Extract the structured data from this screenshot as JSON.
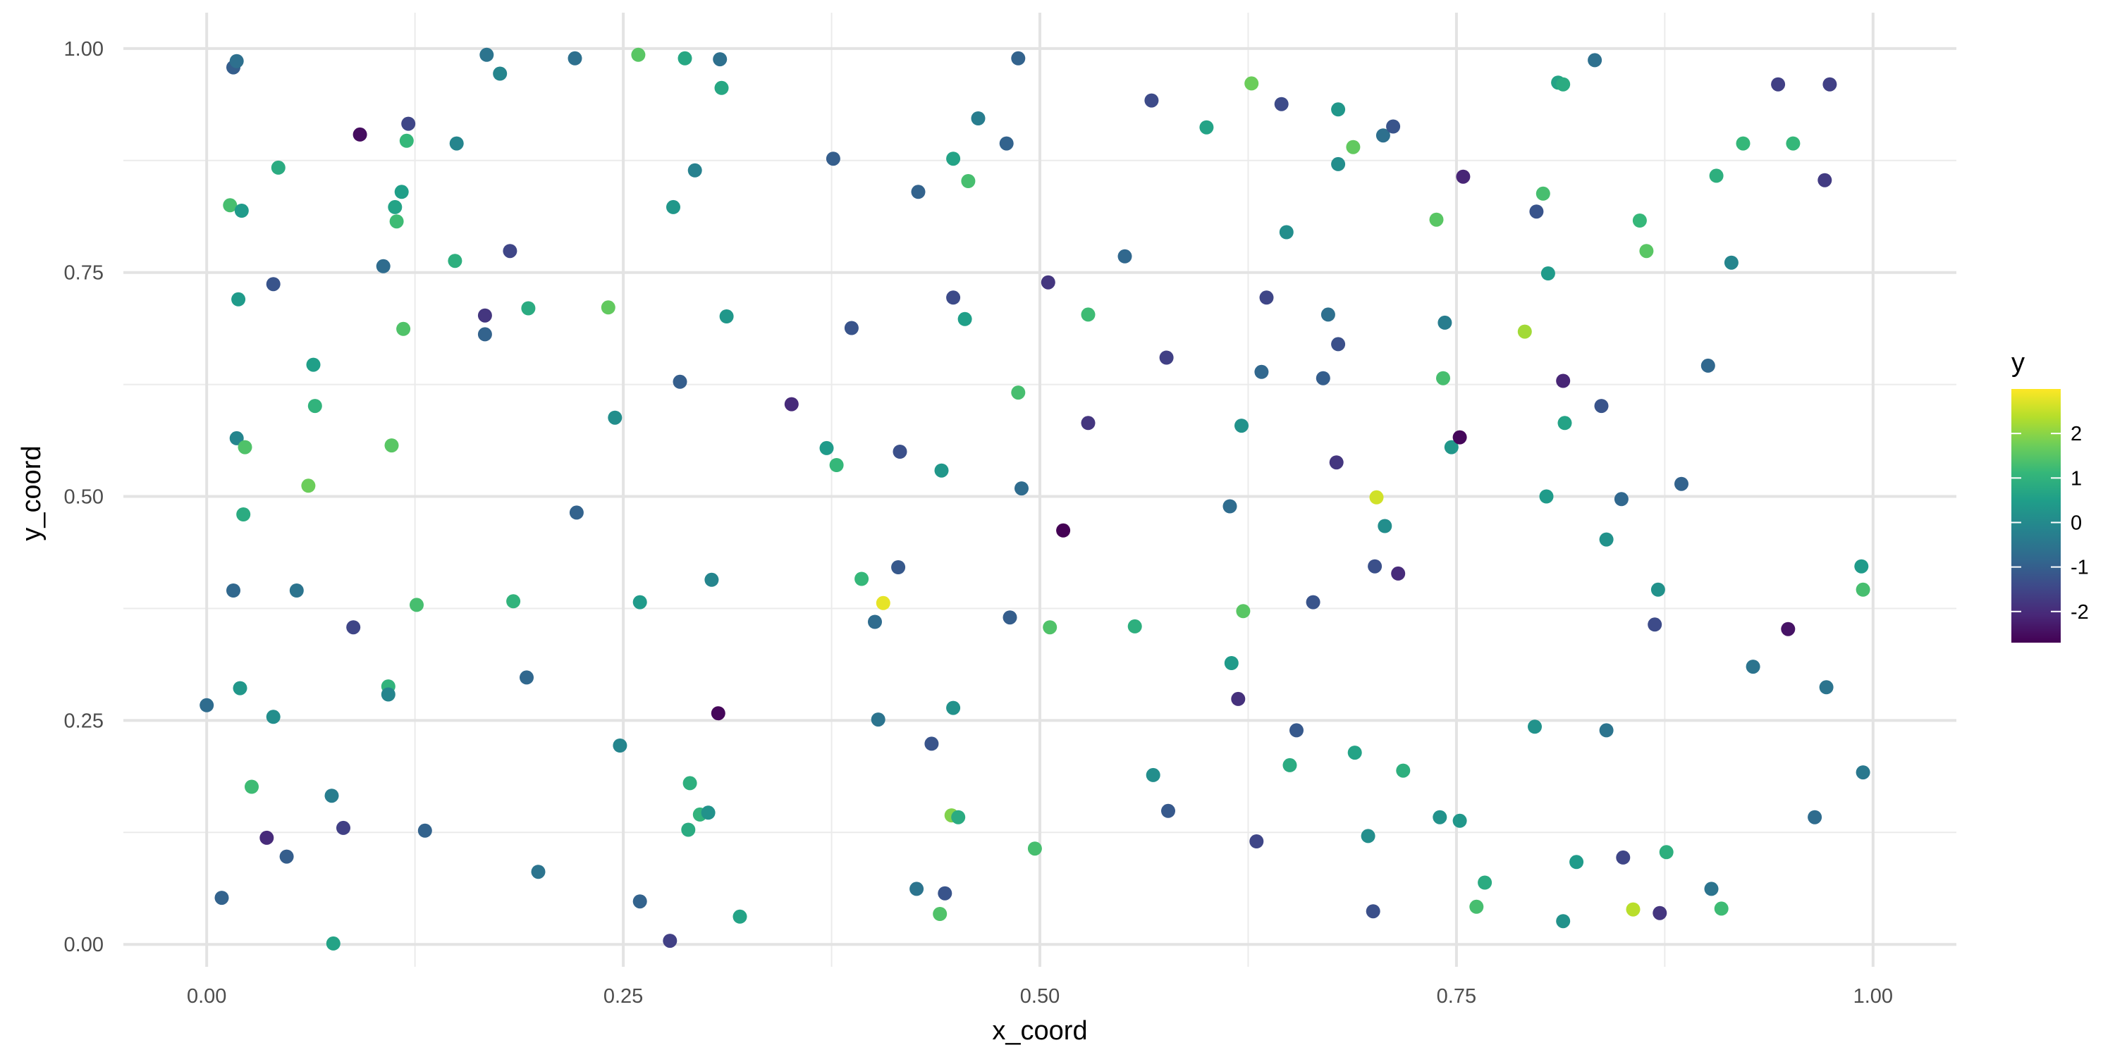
{
  "chart_data": {
    "type": "scatter",
    "title": "",
    "xlabel": "x_coord",
    "ylabel": "y_coord",
    "xlim": [
      -0.05,
      1.05
    ],
    "ylim": [
      -0.025,
      1.04
    ],
    "x_ticks": [
      0.0,
      0.25,
      0.5,
      0.75,
      1.0
    ],
    "x_tick_labels": [
      "0.00",
      "0.25",
      "0.50",
      "0.75",
      "1.00"
    ],
    "y_ticks": [
      0.0,
      0.25,
      0.5,
      0.75,
      1.0
    ],
    "y_tick_labels": [
      "0.00",
      "0.25",
      "0.50",
      "0.75",
      "1.00"
    ],
    "grid": true,
    "legend": {
      "title": "y",
      "placement": "right",
      "range": [
        -2.7,
        3.0
      ],
      "ticks": [
        2,
        1,
        0,
        -1,
        -2
      ],
      "tick_labels": [
        "2",
        "1",
        "0",
        "-1",
        "-2"
      ]
    },
    "colors": [
      "#440154",
      "#482878",
      "#3e4989",
      "#31688e",
      "#26828e",
      "#1f9e89",
      "#35b779",
      "#6ece58",
      "#b5de2b",
      "#fde725"
    ],
    "points": [
      [
        0.0,
        0.267,
        -0.7
      ],
      [
        0.009,
        0.052,
        -0.9
      ],
      [
        0.014,
        0.825,
        1.3
      ],
      [
        0.016,
        0.979,
        -1.0
      ],
      [
        0.016,
        0.395,
        -0.8
      ],
      [
        0.018,
        0.986,
        -0.6
      ],
      [
        0.018,
        0.565,
        -0.1
      ],
      [
        0.019,
        0.72,
        0.4
      ],
      [
        0.02,
        0.286,
        0.3
      ],
      [
        0.021,
        0.819,
        0.4
      ],
      [
        0.022,
        0.48,
        0.8
      ],
      [
        0.023,
        0.555,
        1.4
      ],
      [
        0.027,
        0.176,
        1.2
      ],
      [
        0.036,
        0.119,
        -2.0
      ],
      [
        0.04,
        0.254,
        0.1
      ],
      [
        0.04,
        0.737,
        -1.2
      ],
      [
        0.043,
        0.867,
        0.8
      ],
      [
        0.048,
        0.098,
        -1.0
      ],
      [
        0.054,
        0.395,
        -0.5
      ],
      [
        0.061,
        0.512,
        1.7
      ],
      [
        0.064,
        0.647,
        0.5
      ],
      [
        0.065,
        0.601,
        1.0
      ],
      [
        0.075,
        0.166,
        -0.3
      ],
      [
        0.076,
        0.001,
        0.6
      ],
      [
        0.082,
        0.13,
        -1.6
      ],
      [
        0.088,
        0.354,
        -1.5
      ],
      [
        0.092,
        0.904,
        -2.5
      ],
      [
        0.106,
        0.757,
        -0.7
      ],
      [
        0.109,
        0.288,
        1.0
      ],
      [
        0.109,
        0.279,
        -0.1
      ],
      [
        0.111,
        0.557,
        1.5
      ],
      [
        0.113,
        0.823,
        0.6
      ],
      [
        0.114,
        0.807,
        1.2
      ],
      [
        0.117,
        0.84,
        0.5
      ],
      [
        0.118,
        0.687,
        1.4
      ],
      [
        0.12,
        0.897,
        1.1
      ],
      [
        0.121,
        0.916,
        -1.5
      ],
      [
        0.126,
        0.379,
        1.3
      ],
      [
        0.131,
        0.127,
        -0.9
      ],
      [
        0.15,
        0.894,
        -0.1
      ],
      [
        0.149,
        0.763,
        0.9
      ],
      [
        0.167,
        0.702,
        -1.8
      ],
      [
        0.167,
        0.681,
        -0.9
      ],
      [
        0.168,
        0.993,
        -0.5
      ],
      [
        0.176,
        0.972,
        -0.1
      ],
      [
        0.182,
        0.774,
        -1.5
      ],
      [
        0.184,
        0.383,
        1.0
      ],
      [
        0.192,
        0.298,
        -0.8
      ],
      [
        0.193,
        0.71,
        0.8
      ],
      [
        0.199,
        0.081,
        -0.5
      ],
      [
        0.221,
        0.989,
        -0.6
      ],
      [
        0.222,
        0.482,
        -0.9
      ],
      [
        0.241,
        0.711,
        1.6
      ],
      [
        0.245,
        0.588,
        0.1
      ],
      [
        0.248,
        0.222,
        -0.1
      ],
      [
        0.259,
        0.993,
        1.5
      ],
      [
        0.26,
        0.382,
        0.4
      ],
      [
        0.26,
        0.048,
        -0.9
      ],
      [
        0.278,
        0.004,
        -1.6
      ],
      [
        0.28,
        0.823,
        0.3
      ],
      [
        0.284,
        0.628,
        -1.0
      ],
      [
        0.287,
        0.989,
        0.7
      ],
      [
        0.289,
        0.128,
        0.8
      ],
      [
        0.29,
        0.18,
        0.9
      ],
      [
        0.293,
        0.864,
        -0.2
      ],
      [
        0.296,
        0.145,
        1.0
      ],
      [
        0.301,
        0.147,
        0.2
      ],
      [
        0.303,
        0.407,
        -0.1
      ],
      [
        0.307,
        0.258,
        -2.6
      ],
      [
        0.308,
        0.988,
        -0.6
      ],
      [
        0.309,
        0.956,
        0.7
      ],
      [
        0.312,
        0.701,
        0.3
      ],
      [
        0.32,
        0.031,
        0.6
      ],
      [
        0.351,
        0.603,
        -2.0
      ],
      [
        0.372,
        0.554,
        0.4
      ],
      [
        0.376,
        0.877,
        -1.0
      ],
      [
        0.378,
        0.535,
        1.1
      ],
      [
        0.387,
        0.688,
        -1.2
      ],
      [
        0.393,
        0.408,
        1.1
      ],
      [
        0.401,
        0.36,
        -0.7
      ],
      [
        0.403,
        0.251,
        -0.5
      ],
      [
        0.406,
        0.381,
        2.8
      ],
      [
        0.415,
        0.421,
        -1.1
      ],
      [
        0.416,
        0.55,
        -1.3
      ],
      [
        0.426,
        0.062,
        -0.5
      ],
      [
        0.427,
        0.84,
        -0.9
      ],
      [
        0.435,
        0.224,
        -1.2
      ],
      [
        0.44,
        0.034,
        1.4
      ],
      [
        0.441,
        0.529,
        0.3
      ],
      [
        0.443,
        0.057,
        -1.2
      ],
      [
        0.447,
        0.144,
        1.9
      ],
      [
        0.448,
        0.722,
        -1.4
      ],
      [
        0.448,
        0.264,
        0.2
      ],
      [
        0.448,
        0.877,
        0.6
      ],
      [
        0.451,
        0.142,
        0.8
      ],
      [
        0.455,
        0.698,
        0.5
      ],
      [
        0.457,
        0.852,
        1.3
      ],
      [
        0.463,
        0.922,
        -0.3
      ],
      [
        0.48,
        0.894,
        -0.9
      ],
      [
        0.482,
        0.365,
        -1.0
      ],
      [
        0.487,
        0.989,
        -0.9
      ],
      [
        0.487,
        0.616,
        1.3
      ],
      [
        0.489,
        0.509,
        -0.7
      ],
      [
        0.497,
        0.107,
        1.3
      ],
      [
        0.505,
        0.739,
        -1.8
      ],
      [
        0.506,
        0.354,
        1.4
      ],
      [
        0.514,
        0.462,
        -2.7
      ],
      [
        0.529,
        0.703,
        1.2
      ],
      [
        0.529,
        0.582,
        -1.8
      ],
      [
        0.551,
        0.768,
        -0.8
      ],
      [
        0.557,
        0.355,
        0.9
      ],
      [
        0.567,
        0.942,
        -1.4
      ],
      [
        0.568,
        0.189,
        0.1
      ],
      [
        0.576,
        0.655,
        -1.6
      ],
      [
        0.577,
        0.149,
        -1.1
      ],
      [
        0.6,
        0.912,
        0.6
      ],
      [
        0.614,
        0.489,
        -0.7
      ],
      [
        0.615,
        0.314,
        0.4
      ],
      [
        0.619,
        0.274,
        -1.9
      ],
      [
        0.621,
        0.579,
        0.2
      ],
      [
        0.622,
        0.372,
        1.5
      ],
      [
        0.627,
        0.961,
        1.7
      ],
      [
        0.63,
        0.115,
        -1.5
      ],
      [
        0.633,
        0.639,
        -0.8
      ],
      [
        0.636,
        0.722,
        -1.5
      ],
      [
        0.645,
        0.938,
        -1.4
      ],
      [
        0.648,
        0.795,
        0.1
      ],
      [
        0.65,
        0.2,
        0.8
      ],
      [
        0.654,
        0.239,
        -1.1
      ],
      [
        0.664,
        0.382,
        -1.2
      ],
      [
        0.67,
        0.632,
        -1.0
      ],
      [
        0.673,
        0.703,
        -0.6
      ],
      [
        0.678,
        0.538,
        -1.8
      ],
      [
        0.679,
        0.932,
        0.3
      ],
      [
        0.679,
        0.871,
        0.1
      ],
      [
        0.679,
        0.67,
        -1.3
      ],
      [
        0.688,
        0.89,
        1.6
      ],
      [
        0.689,
        0.214,
        0.6
      ],
      [
        0.697,
        0.121,
        0.1
      ],
      [
        0.7,
        0.037,
        -1.3
      ],
      [
        0.701,
        0.422,
        -1.3
      ],
      [
        0.702,
        0.499,
        2.6
      ],
      [
        0.706,
        0.903,
        -0.6
      ],
      [
        0.707,
        0.467,
        0.1
      ],
      [
        0.712,
        0.913,
        -1.2
      ],
      [
        0.715,
        0.414,
        -2.0
      ],
      [
        0.718,
        0.194,
        0.9
      ],
      [
        0.738,
        0.809,
        1.5
      ],
      [
        0.74,
        0.142,
        0.2
      ],
      [
        0.742,
        0.632,
        1.3
      ],
      [
        0.743,
        0.694,
        -0.3
      ],
      [
        0.747,
        0.555,
        0.3
      ],
      [
        0.752,
        0.138,
        0.3
      ],
      [
        0.752,
        0.566,
        -2.6
      ],
      [
        0.754,
        0.857,
        -2.1
      ],
      [
        0.762,
        0.042,
        1.3
      ],
      [
        0.767,
        0.069,
        0.8
      ],
      [
        0.791,
        0.684,
        2.2
      ],
      [
        0.797,
        0.243,
        0.2
      ],
      [
        0.798,
        0.818,
        -1.2
      ],
      [
        0.802,
        0.838,
        1.3
      ],
      [
        0.804,
        0.5,
        0.4
      ],
      [
        0.805,
        0.749,
        0.4
      ],
      [
        0.811,
        0.962,
        0.6
      ],
      [
        0.814,
        0.96,
        0.8
      ],
      [
        0.814,
        0.026,
        0.2
      ],
      [
        0.814,
        0.629,
        -2.1
      ],
      [
        0.815,
        0.582,
        0.6
      ],
      [
        0.822,
        0.092,
        0.4
      ],
      [
        0.833,
        0.987,
        -0.6
      ],
      [
        0.837,
        0.601,
        -1.2
      ],
      [
        0.84,
        0.452,
        0.2
      ],
      [
        0.84,
        0.239,
        -0.5
      ],
      [
        0.849,
        0.497,
        -0.8
      ],
      [
        0.85,
        0.097,
        -1.5
      ],
      [
        0.856,
        0.039,
        2.4
      ],
      [
        0.86,
        0.808,
        1.1
      ],
      [
        0.864,
        0.774,
        1.5
      ],
      [
        0.869,
        0.357,
        -1.4
      ],
      [
        0.871,
        0.396,
        0.2
      ],
      [
        0.872,
        0.035,
        -1.8
      ],
      [
        0.876,
        0.103,
        0.9
      ],
      [
        0.885,
        0.514,
        -0.9
      ],
      [
        0.901,
        0.646,
        -0.8
      ],
      [
        0.903,
        0.062,
        -0.5
      ],
      [
        0.906,
        0.858,
        0.9
      ],
      [
        0.909,
        0.04,
        1.2
      ],
      [
        0.915,
        0.761,
        -0.1
      ],
      [
        0.922,
        0.894,
        1.1
      ],
      [
        0.928,
        0.31,
        -0.5
      ],
      [
        0.943,
        0.96,
        -1.6
      ],
      [
        0.949,
        0.352,
        -2.4
      ],
      [
        0.952,
        0.894,
        1.1
      ],
      [
        0.965,
        0.142,
        -0.7
      ],
      [
        0.971,
        0.853,
        -1.7
      ],
      [
        0.972,
        0.287,
        -0.5
      ],
      [
        0.974,
        0.96,
        -1.6
      ],
      [
        0.993,
        0.422,
        0.4
      ],
      [
        0.994,
        0.396,
        1.3
      ],
      [
        0.994,
        0.192,
        -0.4
      ]
    ]
  }
}
